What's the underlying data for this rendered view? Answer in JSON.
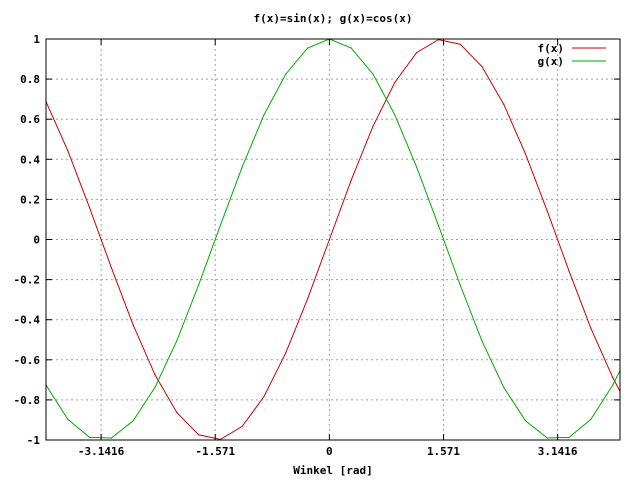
{
  "chart_data": {
    "type": "line",
    "title": "f(x)=sin(x); g(x)=cos(x)",
    "xlabel": "Winkel [rad]",
    "ylabel": "",
    "xlim": [
      -3.9,
      4.0
    ],
    "ylim": [
      -1,
      1
    ],
    "grid": true,
    "legend_position": "top-right",
    "x_ticks": [
      {
        "value": -3.1416,
        "label": "-3.1416"
      },
      {
        "value": -1.571,
        "label": "-1.571"
      },
      {
        "value": 0,
        "label": "0"
      },
      {
        "value": 1.571,
        "label": "1.571"
      },
      {
        "value": 3.1416,
        "label": "3.1416"
      }
    ],
    "y_ticks": [
      {
        "value": 1,
        "label": "1"
      },
      {
        "value": 0.8,
        "label": "0.8"
      },
      {
        "value": 0.6,
        "label": "0.6"
      },
      {
        "value": 0.4,
        "label": "0.4"
      },
      {
        "value": 0.2,
        "label": "0.2"
      },
      {
        "value": 0,
        "label": "0"
      },
      {
        "value": -0.2,
        "label": "-0.2"
      },
      {
        "value": -0.4,
        "label": "-0.4"
      },
      {
        "value": -0.6,
        "label": "-0.6"
      },
      {
        "value": -0.8,
        "label": "-0.8"
      },
      {
        "value": -1,
        "label": "-1"
      }
    ],
    "series": [
      {
        "name": "f(x)",
        "color": "#cc0000",
        "x": [
          -3.9,
          -3.6,
          -3.3,
          -3.0,
          -2.7,
          -2.4,
          -2.1,
          -1.8,
          -1.5,
          -1.2,
          -0.9,
          -0.6,
          -0.3,
          0.0,
          0.3,
          0.6,
          0.9,
          1.2,
          1.5,
          1.8,
          2.1,
          2.4,
          2.7,
          3.0,
          3.3,
          3.6,
          3.9,
          4.0
        ],
        "y": [
          0.688,
          0.443,
          0.158,
          -0.141,
          -0.427,
          -0.675,
          -0.863,
          -0.974,
          -0.997,
          -0.932,
          -0.783,
          -0.565,
          -0.296,
          0.0,
          0.296,
          0.565,
          0.783,
          0.932,
          0.997,
          0.974,
          0.863,
          0.675,
          0.427,
          0.141,
          -0.158,
          -0.443,
          -0.688,
          -0.757
        ]
      },
      {
        "name": "g(x)",
        "color": "#00aa00",
        "x": [
          -3.9,
          -3.6,
          -3.3,
          -3.0,
          -2.7,
          -2.4,
          -2.1,
          -1.8,
          -1.5,
          -1.2,
          -0.9,
          -0.6,
          -0.3,
          0.0,
          0.3,
          0.6,
          0.9,
          1.2,
          1.5,
          1.8,
          2.1,
          2.4,
          2.7,
          3.0,
          3.3,
          3.6,
          3.9,
          4.0
        ],
        "y": [
          -0.726,
          -0.897,
          -0.987,
          -0.99,
          -0.904,
          -0.737,
          -0.505,
          -0.227,
          0.071,
          0.362,
          0.622,
          0.825,
          0.955,
          1.0,
          0.955,
          0.825,
          0.622,
          0.362,
          0.071,
          -0.227,
          -0.505,
          -0.737,
          -0.904,
          -0.99,
          -0.987,
          -0.897,
          -0.726,
          -0.654
        ]
      }
    ]
  }
}
